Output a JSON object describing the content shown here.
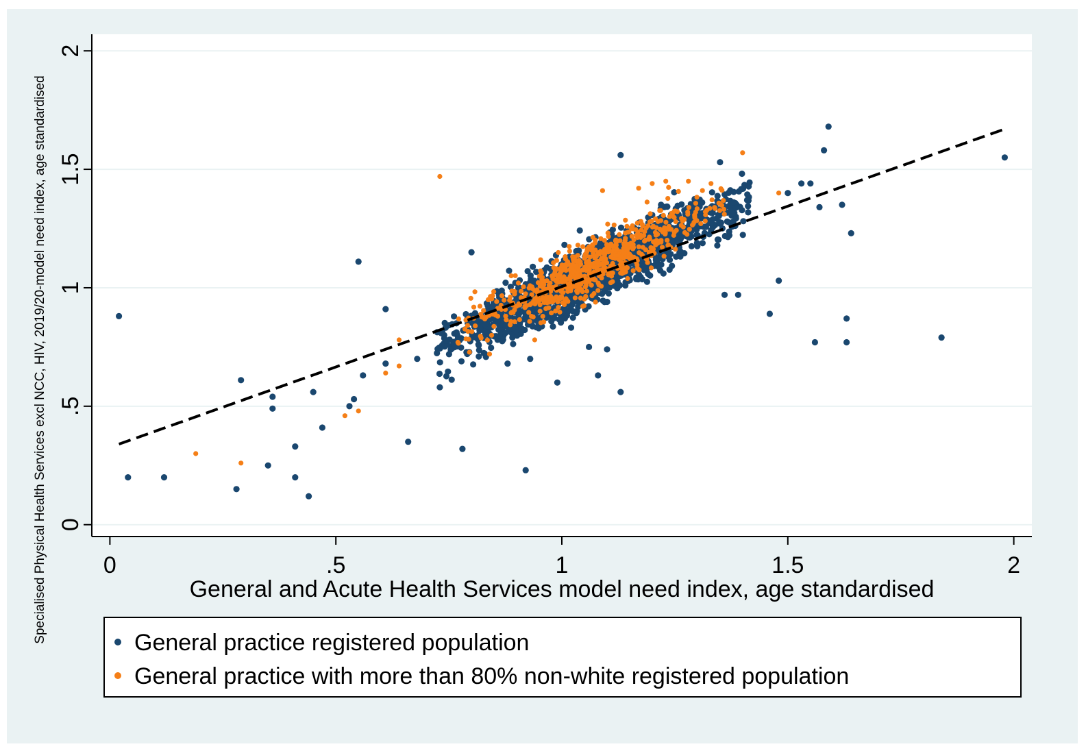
{
  "chart_data": {
    "type": "scatter",
    "title": "",
    "xlabel": "General and Acute Health Services model need index, age standardised",
    "ylabel": "Specialised Physical Health Services excl NCC, HIV, 2019/20-model need index, age standardised",
    "xlim": [
      -0.04,
      2.04
    ],
    "ylim": [
      -0.05,
      2.07
    ],
    "x_ticks": [
      0,
      0.5,
      1,
      1.5,
      2
    ],
    "x_tick_labels": [
      "0",
      ".5",
      "1",
      "1.5",
      "2"
    ],
    "y_ticks": [
      0,
      0.5,
      1,
      1.5,
      2
    ],
    "y_tick_labels": [
      "0",
      ".5",
      "1",
      "1.5",
      "2"
    ],
    "grid": "horizontal",
    "legend_position": "bottom",
    "colors": {
      "series_1": "#1a476f",
      "series_2": "#f57f17",
      "fit_line": "#000000",
      "plot_bg": "#ffffff",
      "outer_bg": "#eaf2f3",
      "grid": "#eaf2f3"
    },
    "series": [
      {
        "name": "General practice registered population",
        "marker": "circle",
        "cluster": {
          "x_range": [
            0.72,
            1.42
          ],
          "y_range": [
            0.72,
            1.4
          ],
          "slope": 0.92,
          "approx_count": 1800
        },
        "points": [
          {
            "x": 0.02,
            "y": 0.88
          },
          {
            "x": 0.04,
            "y": 0.2
          },
          {
            "x": 0.12,
            "y": 0.2
          },
          {
            "x": 0.28,
            "y": 0.15
          },
          {
            "x": 0.29,
            "y": 0.61
          },
          {
            "x": 0.35,
            "y": 0.25
          },
          {
            "x": 0.36,
            "y": 0.49
          },
          {
            "x": 0.36,
            "y": 0.54
          },
          {
            "x": 0.41,
            "y": 0.33
          },
          {
            "x": 0.41,
            "y": 0.2
          },
          {
            "x": 0.44,
            "y": 0.12
          },
          {
            "x": 0.45,
            "y": 0.56
          },
          {
            "x": 0.47,
            "y": 0.41
          },
          {
            "x": 0.53,
            "y": 0.5
          },
          {
            "x": 0.54,
            "y": 0.53
          },
          {
            "x": 0.55,
            "y": 1.11
          },
          {
            "x": 0.56,
            "y": 0.63
          },
          {
            "x": 0.61,
            "y": 0.91
          },
          {
            "x": 0.61,
            "y": 0.68
          },
          {
            "x": 0.66,
            "y": 0.35
          },
          {
            "x": 0.68,
            "y": 0.7
          },
          {
            "x": 0.73,
            "y": 0.58
          },
          {
            "x": 0.78,
            "y": 0.32
          },
          {
            "x": 0.8,
            "y": 1.15
          },
          {
            "x": 0.88,
            "y": 0.68
          },
          {
            "x": 0.92,
            "y": 0.23
          },
          {
            "x": 0.93,
            "y": 0.7
          },
          {
            "x": 0.99,
            "y": 0.6
          },
          {
            "x": 1.06,
            "y": 0.75
          },
          {
            "x": 1.08,
            "y": 0.63
          },
          {
            "x": 1.1,
            "y": 0.74
          },
          {
            "x": 1.13,
            "y": 0.56
          },
          {
            "x": 1.13,
            "y": 1.56
          },
          {
            "x": 1.35,
            "y": 1.53
          },
          {
            "x": 1.36,
            "y": 0.97
          },
          {
            "x": 1.39,
            "y": 0.97
          },
          {
            "x": 1.46,
            "y": 0.89
          },
          {
            "x": 1.48,
            "y": 1.03
          },
          {
            "x": 1.5,
            "y": 1.4
          },
          {
            "x": 1.53,
            "y": 1.44
          },
          {
            "x": 1.55,
            "y": 1.44
          },
          {
            "x": 1.56,
            "y": 0.77
          },
          {
            "x": 1.57,
            "y": 1.34
          },
          {
            "x": 1.58,
            "y": 1.58
          },
          {
            "x": 1.59,
            "y": 1.68
          },
          {
            "x": 1.62,
            "y": 1.35
          },
          {
            "x": 1.63,
            "y": 0.87
          },
          {
            "x": 1.63,
            "y": 0.77
          },
          {
            "x": 1.64,
            "y": 1.23
          },
          {
            "x": 1.84,
            "y": 0.79
          },
          {
            "x": 1.98,
            "y": 1.55
          }
        ]
      },
      {
        "name": "General practice with more than 80% non-white registered population",
        "marker": "circle",
        "cluster": {
          "x_range": [
            0.76,
            1.36
          ],
          "y_range": [
            0.74,
            1.42
          ],
          "slope": 0.92,
          "approx_count": 700
        },
        "points": [
          {
            "x": 0.19,
            "y": 0.3
          },
          {
            "x": 0.29,
            "y": 0.26
          },
          {
            "x": 0.52,
            "y": 0.46
          },
          {
            "x": 0.55,
            "y": 0.48
          },
          {
            "x": 0.61,
            "y": 0.64
          },
          {
            "x": 0.64,
            "y": 0.67
          },
          {
            "x": 0.64,
            "y": 0.78
          },
          {
            "x": 0.73,
            "y": 1.47
          },
          {
            "x": 0.77,
            "y": 0.77
          },
          {
            "x": 0.84,
            "y": 0.72
          },
          {
            "x": 0.94,
            "y": 0.78
          },
          {
            "x": 1.09,
            "y": 1.41
          },
          {
            "x": 1.17,
            "y": 1.42
          },
          {
            "x": 1.2,
            "y": 1.44
          },
          {
            "x": 1.23,
            "y": 1.45
          },
          {
            "x": 1.28,
            "y": 1.45
          },
          {
            "x": 1.33,
            "y": 1.44
          },
          {
            "x": 1.4,
            "y": 1.57
          },
          {
            "x": 1.48,
            "y": 1.4
          }
        ]
      }
    ],
    "fit_line": {
      "style": "dashed",
      "x": [
        0.02,
        1.98
      ],
      "y": [
        0.34,
        1.67
      ]
    }
  }
}
